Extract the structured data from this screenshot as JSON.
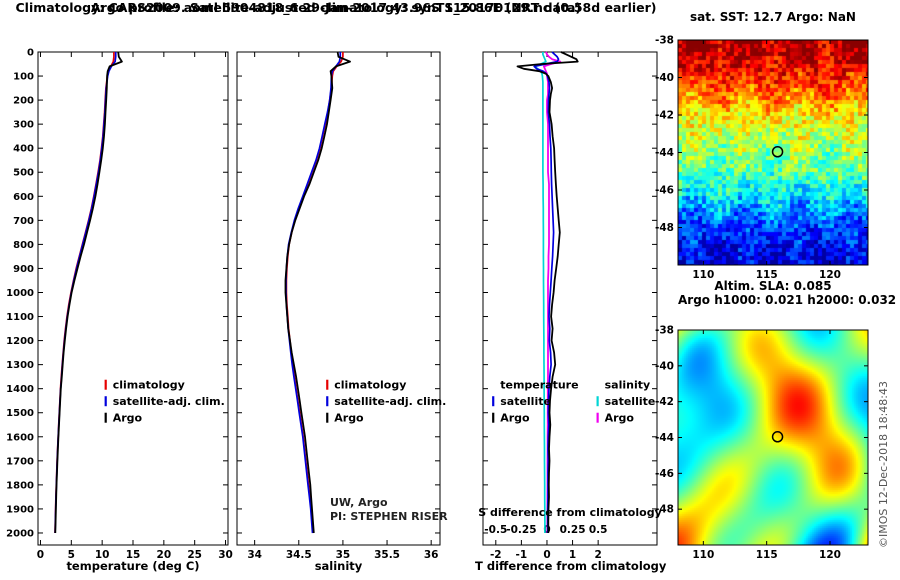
{
  "figure": {
    "title_line1": "Argo profile: aoml 5904818_6 29-Jan-2017 43.96S 115.86E (NRT data)",
    "title_line2": "Climatology: CARS2009. Satellite-adjusted climatology: synTS_20170129.nc (0.58d earlier)",
    "watermark": "©IMOS 12-Dec-2018 18:48:43",
    "credit_org": "UW, Argo",
    "credit_pi": "PI: STEPHEN RISER"
  },
  "chart_data": [
    {
      "id": "temperature",
      "type": "line",
      "xlabel": "temperature (deg C)",
      "ylabel": "",
      "xlim": [
        -0.4,
        30.4
      ],
      "xticks": [
        0,
        5,
        10,
        15,
        20,
        25,
        30
      ],
      "ylim": [
        0,
        2050
      ],
      "yticks": [
        0,
        100,
        200,
        300,
        400,
        500,
        600,
        700,
        800,
        900,
        1000,
        1100,
        1200,
        1300,
        1400,
        1500,
        1600,
        1700,
        1800,
        1900,
        2000
      ],
      "grid": false,
      "depths": [
        0,
        20,
        40,
        60,
        80,
        100,
        150,
        200,
        250,
        300,
        350,
        400,
        450,
        500,
        550,
        600,
        650,
        700,
        750,
        800,
        850,
        900,
        950,
        1000,
        1050,
        1100,
        1150,
        1200,
        1250,
        1300,
        1350,
        1400,
        1450,
        1500,
        1550,
        1600,
        1650,
        1700,
        1750,
        1800,
        1850,
        1900,
        1950,
        2000
      ],
      "series": [
        {
          "name": "climatology",
          "color": "#e60000",
          "values": [
            11.9,
            11.9,
            11.8,
            11.4,
            11.05,
            10.85,
            10.6,
            10.5,
            10.4,
            10.25,
            10.1,
            9.9,
            9.65,
            9.35,
            9.0,
            8.65,
            8.25,
            7.8,
            7.3,
            6.8,
            6.3,
            5.8,
            5.35,
            4.95,
            4.6,
            4.3,
            4.05,
            3.85,
            3.68,
            3.52,
            3.38,
            3.25,
            3.15,
            3.05,
            2.95,
            2.87,
            2.78,
            2.7,
            2.63,
            2.57,
            2.5,
            2.45,
            2.4,
            2.35
          ]
        },
        {
          "name": "satellite-adj. clim.",
          "color": "#0000dd",
          "values": [
            12.2,
            12.2,
            12.1,
            11.5,
            11.1,
            10.9,
            10.65,
            10.55,
            10.45,
            10.3,
            10.15,
            9.95,
            9.7,
            9.4,
            9.05,
            8.7,
            8.3,
            7.85,
            7.35,
            6.85,
            6.35,
            5.85,
            5.4,
            5.0,
            4.65,
            4.35,
            4.1,
            3.9,
            3.72,
            3.56,
            3.42,
            3.28,
            3.17,
            3.07,
            2.97,
            2.88,
            2.8,
            2.72,
            2.65,
            2.58,
            2.52,
            2.47,
            2.42,
            2.37
          ]
        },
        {
          "name": "Argo",
          "color": "#000000",
          "values": [
            12.6,
            12.7,
            13.2,
            11.2,
            10.9,
            10.8,
            10.75,
            10.65,
            10.55,
            10.45,
            10.3,
            10.1,
            9.85,
            9.55,
            9.25,
            8.9,
            8.5,
            8.05,
            7.55,
            7.05,
            6.5,
            6.0,
            5.5,
            5.05,
            4.7,
            4.4,
            4.15,
            3.95,
            3.75,
            3.6,
            3.45,
            3.3,
            3.2,
            3.1,
            3.0,
            2.9,
            2.82,
            2.75,
            2.68,
            2.6,
            2.55,
            2.5,
            2.45,
            2.4
          ]
        }
      ],
      "legend": {
        "fx": 0.33,
        "fy": 0.683
      }
    },
    {
      "id": "salinity",
      "type": "line",
      "xlabel": "salinity",
      "ylabel": "",
      "xlim": [
        33.8,
        36.1
      ],
      "xticks": [
        34,
        34.5,
        35,
        35.5,
        36
      ],
      "ylim": [
        0,
        2050
      ],
      "yticks": [
        0,
        100,
        200,
        300,
        400,
        500,
        600,
        700,
        800,
        900,
        1000,
        1100,
        1200,
        1300,
        1400,
        1500,
        1600,
        1700,
        1800,
        1900,
        2000
      ],
      "grid": false,
      "depths": [
        0,
        20,
        40,
        60,
        80,
        100,
        150,
        200,
        250,
        300,
        350,
        400,
        450,
        500,
        550,
        600,
        650,
        700,
        750,
        800,
        850,
        900,
        950,
        1000,
        1050,
        1100,
        1150,
        1200,
        1250,
        1300,
        1350,
        1400,
        1450,
        1500,
        1550,
        1600,
        1650,
        1700,
        1750,
        1800,
        1850,
        1900,
        1950,
        2000
      ],
      "series": [
        {
          "name": "climatology",
          "color": "#e60000",
          "values": [
            35.0,
            35.0,
            34.98,
            34.93,
            34.89,
            34.88,
            34.87,
            34.85,
            34.83,
            34.8,
            34.77,
            34.74,
            34.7,
            34.65,
            34.6,
            34.55,
            34.5,
            34.455,
            34.42,
            34.39,
            34.375,
            34.365,
            34.36,
            34.36,
            34.365,
            34.375,
            34.385,
            34.4,
            34.415,
            34.43,
            34.45,
            34.47,
            34.49,
            34.51,
            34.53,
            34.55,
            34.565,
            34.58,
            34.595,
            34.61,
            34.625,
            34.64,
            34.65,
            34.66
          ]
        },
        {
          "name": "satellite-adj. clim.",
          "color": "#0000dd",
          "values": [
            34.97,
            34.97,
            34.96,
            34.92,
            34.88,
            34.87,
            34.865,
            34.85,
            34.825,
            34.795,
            34.765,
            34.735,
            34.695,
            34.645,
            34.595,
            34.545,
            34.495,
            34.45,
            34.415,
            34.385,
            34.37,
            34.36,
            34.355,
            34.355,
            34.36,
            34.37,
            34.38,
            34.395,
            34.41,
            34.425,
            34.445,
            34.465,
            34.485,
            34.505,
            34.525,
            34.545,
            34.56,
            34.575,
            34.59,
            34.605,
            34.62,
            34.635,
            34.645,
            34.655
          ]
        },
        {
          "name": "Argo",
          "color": "#000000",
          "values": [
            34.94,
            34.95,
            35.08,
            34.92,
            34.86,
            34.87,
            34.88,
            34.86,
            34.84,
            34.82,
            34.79,
            34.76,
            34.72,
            34.67,
            34.62,
            34.56,
            34.51,
            34.46,
            34.42,
            34.39,
            34.37,
            34.36,
            34.35,
            34.35,
            34.36,
            34.37,
            34.38,
            34.4,
            34.42,
            34.445,
            34.47,
            34.49,
            34.51,
            34.53,
            34.55,
            34.57,
            34.585,
            34.6,
            34.615,
            34.63,
            34.64,
            34.65,
            34.66,
            34.67
          ]
        }
      ],
      "legend": {
        "fx": 0.42,
        "fy": 0.683
      }
    },
    {
      "id": "difference",
      "type": "line",
      "xlabel": "T difference from climatology",
      "xlabel_top_inner": "S difference from climatology",
      "ylabel": "",
      "xlim": [
        -2.5,
        4.3
      ],
      "xticks": [
        -2,
        -1,
        0,
        1,
        2
      ],
      "s_ticks": [
        -0.5,
        -0.25,
        0,
        0.25,
        0.5
      ],
      "s_scale": 4,
      "ylim": [
        0,
        2050
      ],
      "yticks": [
        0,
        100,
        200,
        300,
        400,
        500,
        600,
        700,
        800,
        900,
        1000,
        1100,
        1200,
        1300,
        1400,
        1500,
        1600,
        1700,
        1800,
        1900,
        2000
      ],
      "grid": false,
      "depths": [
        0,
        10,
        20,
        30,
        40,
        50,
        60,
        70,
        80,
        90,
        100,
        125,
        150,
        175,
        200,
        250,
        300,
        350,
        400,
        450,
        500,
        550,
        600,
        650,
        700,
        750,
        800,
        850,
        900,
        950,
        1000,
        1050,
        1100,
        1150,
        1200,
        1250,
        1300,
        1350,
        1400,
        1450,
        1500,
        1550,
        1600,
        1650,
        1700,
        1750,
        1800,
        1850,
        1900,
        1950,
        2000
      ],
      "series": [
        {
          "name": "satellite",
          "group": "salinity",
          "axis": "S",
          "color": "#00d5d5",
          "values": [
            -0.04,
            -0.04,
            -0.03,
            -0.02,
            -0.01,
            -0.06,
            -0.12,
            -0.09,
            -0.06,
            -0.05,
            -0.045,
            -0.04,
            -0.04,
            -0.04,
            -0.04,
            -0.04,
            -0.04,
            -0.04,
            -0.04,
            -0.04,
            -0.04,
            -0.038,
            -0.038,
            -0.036,
            -0.036,
            -0.035,
            -0.035,
            -0.035,
            -0.034,
            -0.034,
            -0.033,
            -0.032,
            -0.032,
            -0.031,
            -0.03,
            -0.03,
            -0.029,
            -0.028,
            -0.028,
            -0.027,
            -0.026,
            -0.026,
            -0.025,
            -0.024,
            -0.024,
            -0.023,
            -0.022,
            -0.022,
            -0.021,
            -0.02,
            -0.02
          ]
        },
        {
          "name": "Argo",
          "group": "salinity",
          "axis": "S",
          "color": "#f000f0",
          "values": [
            -0.01,
            0.0,
            0.02,
            0.05,
            0.13,
            0.04,
            -0.03,
            -0.02,
            -0.01,
            0.0,
            0.0,
            0.01,
            0.01,
            0.01,
            0.0,
            0.0,
            0.01,
            0.01,
            0.01,
            0.01,
            0.01,
            0.02,
            0.02,
            0.02,
            0.02,
            0.02,
            0.02,
            0.015,
            0.015,
            0.01,
            0.01,
            0.01,
            0.01,
            0.01,
            0.01,
            0.01,
            0.01,
            0.01,
            0.008,
            0.008,
            0.007,
            0.007,
            0.006,
            0.006,
            0.005,
            0.005,
            0.005,
            0.004,
            0.004,
            0.004,
            0.003
          ]
        },
        {
          "name": "satellite",
          "group": "temperature",
          "axis": "T",
          "color": "#0000dd",
          "values": [
            0.2,
            0.3,
            0.4,
            0.45,
            0.4,
            -0.05,
            -0.5,
            -0.4,
            -0.15,
            -0.03,
            0.02,
            0.08,
            0.1,
            0.08,
            0.06,
            0.05,
            0.1,
            0.12,
            0.15,
            0.16,
            0.17,
            0.18,
            0.2,
            0.22,
            0.24,
            0.26,
            0.24,
            0.22,
            0.19,
            0.16,
            0.13,
            0.1,
            0.08,
            0.11,
            0.09,
            0.14,
            0.16,
            0.11,
            0.08,
            0.06,
            0.05,
            0.07,
            0.05,
            0.04,
            0.05,
            0.04,
            0.04,
            0.04,
            0.03,
            0.03,
            0.03
          ]
        },
        {
          "name": "Argo",
          "group": "temperature",
          "axis": "T",
          "color": "#000000",
          "values": [
            0.55,
            0.75,
            0.95,
            1.15,
            1.2,
            -0.2,
            -1.15,
            -0.9,
            -0.3,
            -0.05,
            0.05,
            0.15,
            0.2,
            0.15,
            0.12,
            0.1,
            0.18,
            0.22,
            0.28,
            0.3,
            0.32,
            0.35,
            0.38,
            0.42,
            0.46,
            0.5,
            0.46,
            0.42,
            0.36,
            0.3,
            0.26,
            0.2,
            0.16,
            0.22,
            0.18,
            0.28,
            0.32,
            0.22,
            0.16,
            0.12,
            0.1,
            0.13,
            0.1,
            0.08,
            0.1,
            0.08,
            0.07,
            0.08,
            0.06,
            0.05,
            0.05
          ]
        }
      ],
      "legend": {
        "fy": 0.683,
        "columns": [
          {
            "fx": 0.03,
            "header": "temperature",
            "entries": [
              {
                "label": "satellite",
                "color": "#0000dd"
              },
              {
                "label": "Argo",
                "color": "#000000"
              }
            ]
          },
          {
            "fx": 0.63,
            "header": "salinity",
            "entries": [
              {
                "label": "satellite",
                "color": "#00d5d5"
              },
              {
                "label": "Argo",
                "color": "#f000f0"
              }
            ]
          }
        ]
      }
    },
    {
      "id": "sst_map",
      "type": "heatmap",
      "title": "sat. SST: 12.7 Argo: NaN",
      "lon_range": [
        108,
        123
      ],
      "lat_range": [
        -50,
        -38
      ],
      "xticks": [
        110,
        115,
        120
      ],
      "yticks": [
        -38,
        -40,
        -42,
        -44,
        -46,
        -48
      ],
      "colormap": "jet",
      "style": "pixel",
      "marker": {
        "lon": 115.86,
        "lat": -43.96
      },
      "description": "satellite SST field, warm red in north grading to cold blue in south"
    },
    {
      "id": "sla_map",
      "type": "heatmap",
      "title_line1": "Altim. SLA: 0.085",
      "title_line2": "Argo h1000: 0.021 h2000: 0.032",
      "lon_range": [
        108,
        123
      ],
      "lat_range": [
        -50,
        -38
      ],
      "xticks": [
        110,
        115,
        120
      ],
      "yticks": [
        -38,
        -40,
        -42,
        -44,
        -46,
        -48
      ],
      "colormap": "jet",
      "style": "smooth",
      "marker": {
        "lon": 115.86,
        "lat": -43.96
      },
      "description": "altimetric sea level anomaly field, green background with warm/cold eddies"
    }
  ]
}
